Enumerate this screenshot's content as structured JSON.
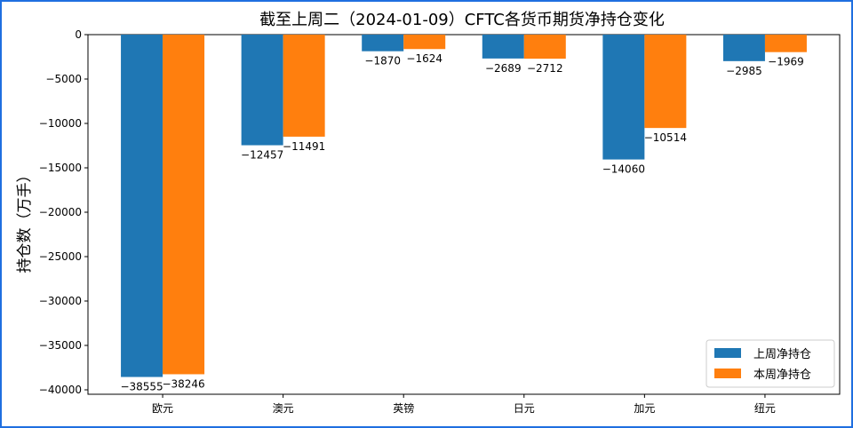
{
  "chart_data": {
    "type": "bar",
    "title": "截至上周二（2024-01-09）CFTC各货币期货净持仓变化",
    "ylabel": "持仓数（万手）",
    "xlabel": "",
    "categories": [
      "欧元",
      "澳元",
      "英镑",
      "日元",
      "加元",
      "纽元"
    ],
    "series": [
      {
        "name": "上周净持仓",
        "color": "#1f77b4",
        "values": [
          -38555,
          -12457,
          -1870,
          -2689,
          -14060,
          -2985
        ]
      },
      {
        "name": "本周净持仓",
        "color": "#ff7f0e",
        "values": [
          -38246,
          -11491,
          -1624,
          -2712,
          -10514,
          -1969
        ]
      }
    ],
    "ylim": [
      -40500,
      0
    ],
    "yticks": [
      0,
      -5000,
      -10000,
      -15000,
      -20000,
      -25000,
      -30000,
      -35000,
      -40000
    ],
    "ytick_labels": [
      "0",
      "−5000",
      "−10000",
      "−15000",
      "−20000",
      "−25000",
      "−30000",
      "−35000",
      "−40000"
    ],
    "data_labels": [
      [
        "−38555",
        "−12457",
        "−1870",
        "−2689",
        "−14060",
        "−2985"
      ],
      [
        "−38246",
        "−11491",
        "−1624",
        "−2712",
        "−10514",
        "−1969"
      ]
    ],
    "grid": false,
    "legend_position": "bottom-right"
  }
}
